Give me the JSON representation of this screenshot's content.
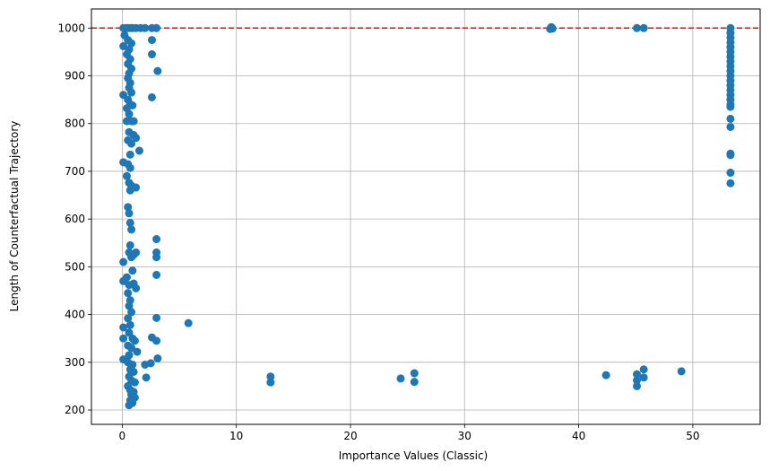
{
  "chart_data": {
    "type": "scatter",
    "xlabel": "Importance Values (Classic)",
    "ylabel": "Length of Counterfactual Trajectory",
    "xlim": [
      -2.7,
      55.9
    ],
    "ylim": [
      170,
      1040
    ],
    "xticks": [
      0,
      10,
      20,
      30,
      40,
      50
    ],
    "yticks": [
      200,
      300,
      400,
      500,
      600,
      700,
      800,
      900,
      1000
    ],
    "grid": true,
    "marker_color": "#1f77b4",
    "reference_line": {
      "y": 1000,
      "color": "#ff0000",
      "style": "dashed"
    },
    "points": [
      [
        0.1,
        1000
      ],
      [
        0.3,
        1000
      ],
      [
        0.5,
        1000
      ],
      [
        0.7,
        1000
      ],
      [
        0.9,
        1000
      ],
      [
        1.2,
        1000
      ],
      [
        1.6,
        1000
      ],
      [
        2.0,
        1000
      ],
      [
        2.6,
        1000
      ],
      [
        3.0,
        1000
      ],
      [
        0.2,
        985
      ],
      [
        0.5,
        975
      ],
      [
        0.8,
        968
      ],
      [
        0.1,
        962
      ],
      [
        0.6,
        955
      ],
      [
        0.4,
        945
      ],
      [
        0.7,
        935
      ],
      [
        0.5,
        925
      ],
      [
        0.8,
        915
      ],
      [
        0.6,
        905
      ],
      [
        0.5,
        895
      ],
      [
        0.7,
        885
      ],
      [
        0.6,
        875
      ],
      [
        0.8,
        865
      ],
      [
        0.1,
        860
      ],
      [
        0.5,
        850
      ],
      [
        0.7,
        840
      ],
      [
        0.4,
        832
      ],
      [
        0.9,
        838
      ],
      [
        0.6,
        820
      ],
      [
        0.4,
        805
      ],
      [
        0.8,
        805
      ],
      [
        1.0,
        805
      ],
      [
        0.6,
        782
      ],
      [
        1.0,
        776
      ],
      [
        1.2,
        770
      ],
      [
        0.5,
        765
      ],
      [
        0.8,
        758
      ],
      [
        1.5,
        743
      ],
      [
        0.7,
        735
      ],
      [
        0.1,
        719
      ],
      [
        0.5,
        715
      ],
      [
        0.7,
        707
      ],
      [
        0.4,
        690
      ],
      [
        0.6,
        676
      ],
      [
        0.8,
        670
      ],
      [
        1.2,
        666
      ],
      [
        0.7,
        660
      ],
      [
        0.5,
        625
      ],
      [
        0.6,
        612
      ],
      [
        0.7,
        592
      ],
      [
        0.8,
        578
      ],
      [
        0.7,
        545
      ],
      [
        0.6,
        530
      ],
      [
        0.8,
        520
      ],
      [
        1.0,
        525
      ],
      [
        1.2,
        530
      ],
      [
        0.9,
        492
      ],
      [
        0.1,
        510
      ],
      [
        0.1,
        470
      ],
      [
        0.4,
        478
      ],
      [
        0.6,
        462
      ],
      [
        1.0,
        465
      ],
      [
        1.2,
        455
      ],
      [
        0.5,
        445
      ],
      [
        0.7,
        430
      ],
      [
        0.6,
        418
      ],
      [
        0.8,
        405
      ],
      [
        0.5,
        392
      ],
      [
        0.7,
        378
      ],
      [
        0.1,
        373
      ],
      [
        0.6,
        362
      ],
      [
        0.1,
        350
      ],
      [
        0.9,
        350
      ],
      [
        1.1,
        345
      ],
      [
        0.5,
        335
      ],
      [
        0.8,
        330
      ],
      [
        1.3,
        322
      ],
      [
        0.6,
        315
      ],
      [
        0.1,
        306
      ],
      [
        0.5,
        300
      ],
      [
        0.9,
        295
      ],
      [
        0.7,
        285
      ],
      [
        1.0,
        280
      ],
      [
        0.6,
        270
      ],
      [
        0.8,
        262
      ],
      [
        1.1,
        258
      ],
      [
        0.5,
        250
      ],
      [
        0.7,
        242
      ],
      [
        1.0,
        238
      ],
      [
        0.8,
        232
      ],
      [
        1.1,
        226
      ],
      [
        0.7,
        220
      ],
      [
        0.9,
        215
      ],
      [
        0.6,
        210
      ],
      [
        2.0,
        295
      ],
      [
        2.1,
        268
      ],
      [
        2.5,
        298
      ],
      [
        2.6,
        352
      ],
      [
        2.6,
        855
      ],
      [
        2.6,
        945
      ],
      [
        2.6,
        975
      ],
      [
        3.0,
        558
      ],
      [
        3.0,
        530
      ],
      [
        3.0,
        520
      ],
      [
        3.0,
        483
      ],
      [
        3.0,
        393
      ],
      [
        3.0,
        345
      ],
      [
        3.1,
        308
      ],
      [
        3.1,
        910
      ],
      [
        5.8,
        382
      ],
      [
        13.0,
        270
      ],
      [
        13.0,
        258
      ],
      [
        24.4,
        266
      ],
      [
        25.6,
        277
      ],
      [
        25.6,
        259
      ],
      [
        37.5,
        998
      ],
      [
        37.6,
        1000
      ],
      [
        37.6,
        1002
      ],
      [
        37.7,
        999
      ],
      [
        42.4,
        273
      ],
      [
        45.1,
        275
      ],
      [
        45.1,
        262
      ],
      [
        45.1,
        250
      ],
      [
        45.7,
        285
      ],
      [
        45.7,
        268
      ],
      [
        49.0,
        281
      ],
      [
        45.1,
        1000
      ],
      [
        45.7,
        1000
      ],
      [
        53.3,
        1000
      ],
      [
        53.3,
        990
      ],
      [
        53.3,
        980
      ],
      [
        53.3,
        970
      ],
      [
        53.3,
        960
      ],
      [
        53.3,
        950
      ],
      [
        53.3,
        940
      ],
      [
        53.3,
        930
      ],
      [
        53.3,
        920
      ],
      [
        53.3,
        910
      ],
      [
        53.3,
        900
      ],
      [
        53.3,
        890
      ],
      [
        53.3,
        880
      ],
      [
        53.3,
        870
      ],
      [
        53.3,
        860
      ],
      [
        53.3,
        850
      ],
      [
        53.3,
        840
      ],
      [
        53.3,
        835
      ],
      [
        53.3,
        810
      ],
      [
        53.3,
        793
      ],
      [
        53.3,
        737
      ],
      [
        53.3,
        734
      ],
      [
        53.3,
        697
      ],
      [
        53.3,
        675
      ]
    ]
  }
}
